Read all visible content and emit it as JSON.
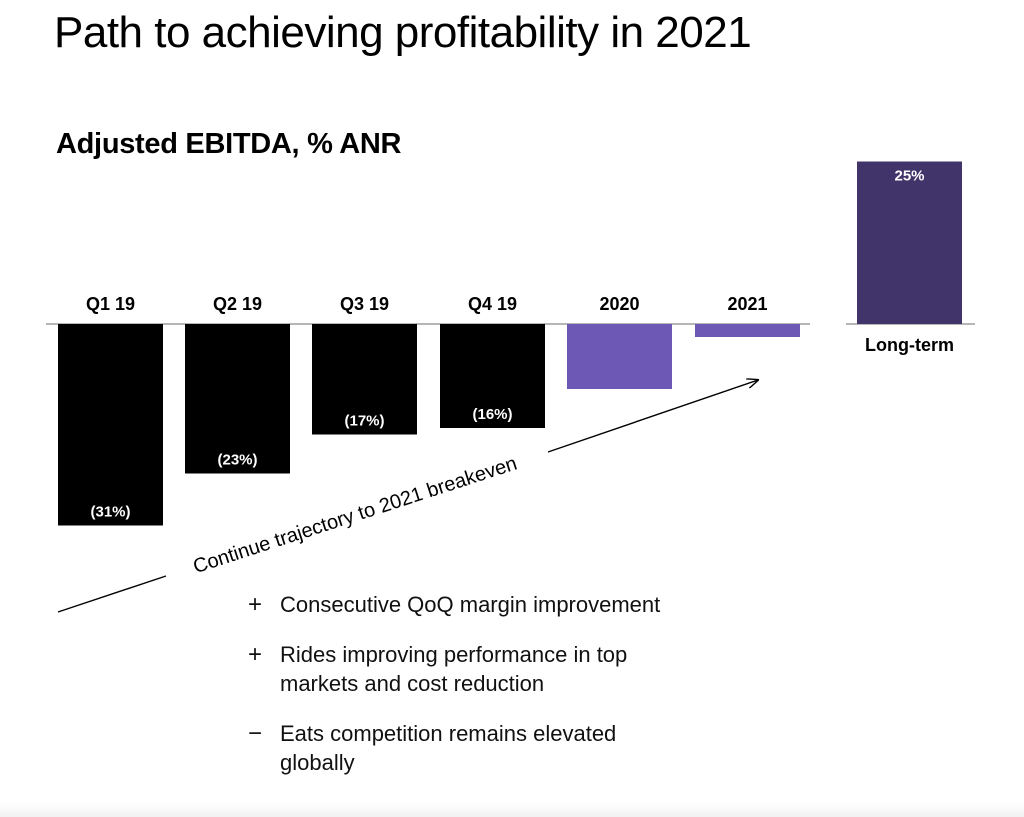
{
  "slide": {
    "title": "Path to achieving profitability in 2021"
  },
  "chart_data": {
    "type": "bar",
    "title": "Adjusted EBITDA, % ANR",
    "categories": [
      "Q1 19",
      "Q2 19",
      "Q3 19",
      "Q4 19",
      "2020",
      "2021",
      "Long-term"
    ],
    "values": [
      -31,
      -23,
      -17,
      -16,
      -10,
      -2,
      25
    ],
    "data_labels": [
      "(31%)",
      "(23%)",
      "(17%)",
      "(16%)",
      "",
      "",
      "25%"
    ],
    "bar_colors": [
      "#000000",
      "#000000",
      "#000000",
      "#000000",
      "#6e58b6",
      "#6e58b6",
      "#41346a"
    ],
    "annotation": "Continue trajectory to 2021 breakeven",
    "ylim": [
      -31,
      31
    ],
    "grid": false,
    "legend": "none"
  },
  "notes": [
    {
      "symbol": "+",
      "icon": "plus-icon",
      "text": "Consecutive QoQ margin improvement"
    },
    {
      "symbol": "+",
      "icon": "plus-icon",
      "text": "Rides improving performance in top markets and cost reduction"
    },
    {
      "symbol": "−",
      "icon": "minus-icon",
      "text": "Eats competition remains elevated globally"
    }
  ]
}
